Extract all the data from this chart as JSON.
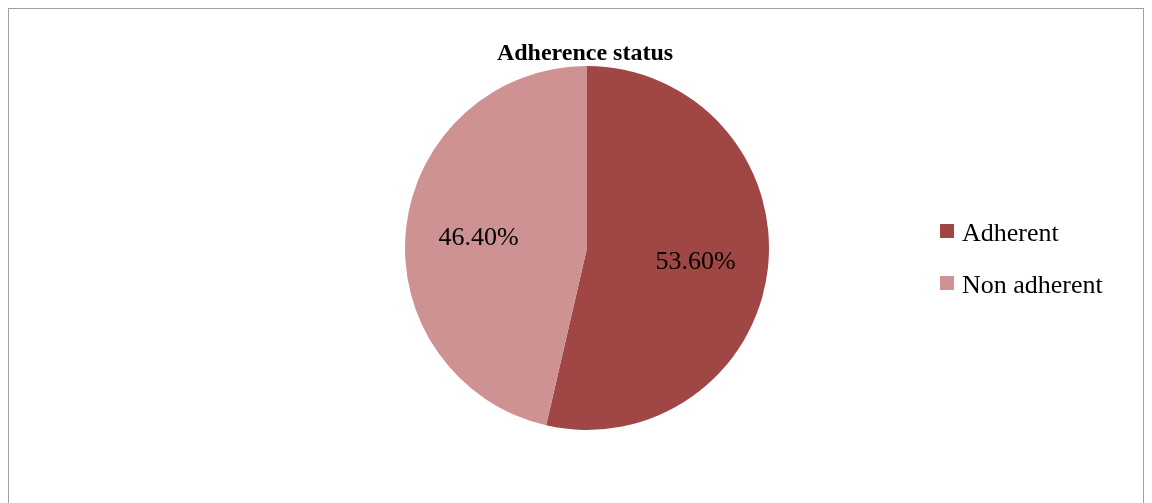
{
  "chart_data": {
    "type": "pie",
    "title": "Adherence status",
    "categories": [
      "Adherent",
      "Non adherent"
    ],
    "values": [
      53.6,
      46.4
    ],
    "colors": [
      "#a04644",
      "#cd9291"
    ],
    "value_labels": [
      "53.60%",
      "46.40%"
    ],
    "legend": "right"
  }
}
